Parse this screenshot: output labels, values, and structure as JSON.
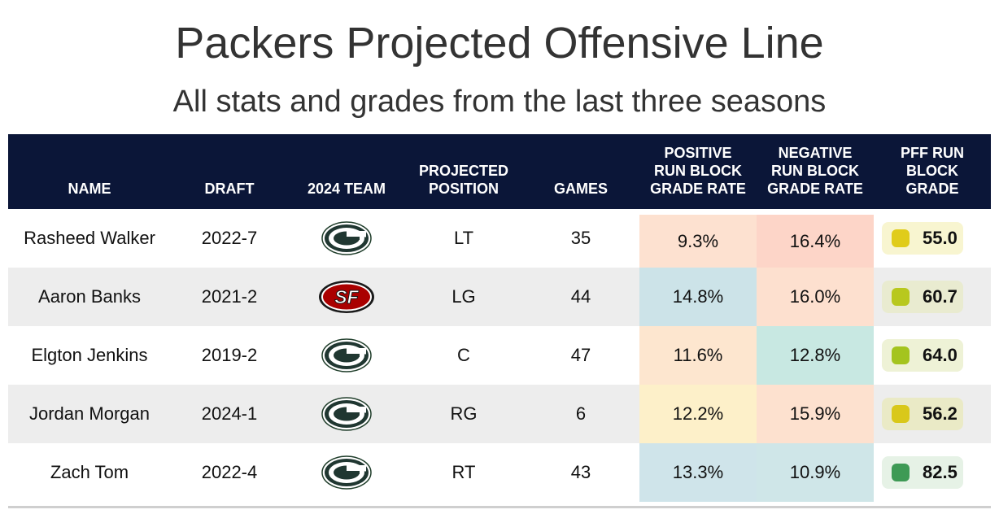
{
  "chart_data": {
    "type": "table",
    "title": "Packers Projected Offensive Line",
    "subtitle": "All stats and grades from the last three seasons",
    "columns": [
      "NAME",
      "DRAFT",
      "2024 TEAM",
      "PROJECTED\nPOSITION",
      "GAMES",
      "POSITIVE\nRUN BLOCK\nGRADE RATE",
      "NEGATIVE\nRUN BLOCK\nGRADE RATE",
      "PFF RUN\nBLOCK\nGRADE"
    ],
    "rows": [
      {
        "name": "Rasheed Walker",
        "draft": "2022-7",
        "team": "Packers",
        "team_logo": "packers-logo-icon",
        "position": "LT",
        "games": "35",
        "positive": "9.3%",
        "negative": "16.4%",
        "grade": "55.0",
        "positive_color": "#fde1d0",
        "negative_color": "#fdd5c8",
        "grade_bg": "#f8f5d0",
        "grade_dot": "#e0cc1a"
      },
      {
        "name": "Aaron Banks",
        "draft": "2021-2",
        "team": "49ers",
        "team_logo": "49ers-logo-icon",
        "position": "LG",
        "games": "44",
        "positive": "14.8%",
        "negative": "16.0%",
        "grade": "60.7",
        "positive_color": "#cce3e8",
        "negative_color": "#fde0cf",
        "grade_bg": "#e9ebd0",
        "grade_dot": "#b8c81e"
      },
      {
        "name": "Elgton Jenkins",
        "draft": "2019-2",
        "team": "Packers",
        "team_logo": "packers-logo-icon",
        "position": "C",
        "games": "47",
        "positive": "11.6%",
        "negative": "12.8%",
        "grade": "64.0",
        "positive_color": "#fde6cf",
        "negative_color": "#c8e8e2",
        "grade_bg": "#eef2d6",
        "grade_dot": "#a4c41e"
      },
      {
        "name": "Jordan Morgan",
        "draft": "2024-1",
        "team": "Packers",
        "team_logo": "packers-logo-icon",
        "position": "RG",
        "games": "6",
        "positive": "12.2%",
        "negative": "15.9%",
        "grade": "56.2",
        "positive_color": "#fdf0c9",
        "negative_color": "#fde1cf",
        "grade_bg": "#eaeac6",
        "grade_dot": "#d9c81a"
      },
      {
        "name": "Zach Tom",
        "draft": "2022-4",
        "team": "Packers",
        "team_logo": "packers-logo-icon",
        "position": "RT",
        "games": "43",
        "positive": "13.3%",
        "negative": "10.9%",
        "grade": "82.5",
        "positive_color": "#cfe4ea",
        "negative_color": "#cfe6e8",
        "grade_bg": "#e6f2e6",
        "grade_dot": "#3e9a55"
      }
    ],
    "colors": {
      "header_bg": "#0b1638",
      "alt_row": "#ededed"
    }
  }
}
